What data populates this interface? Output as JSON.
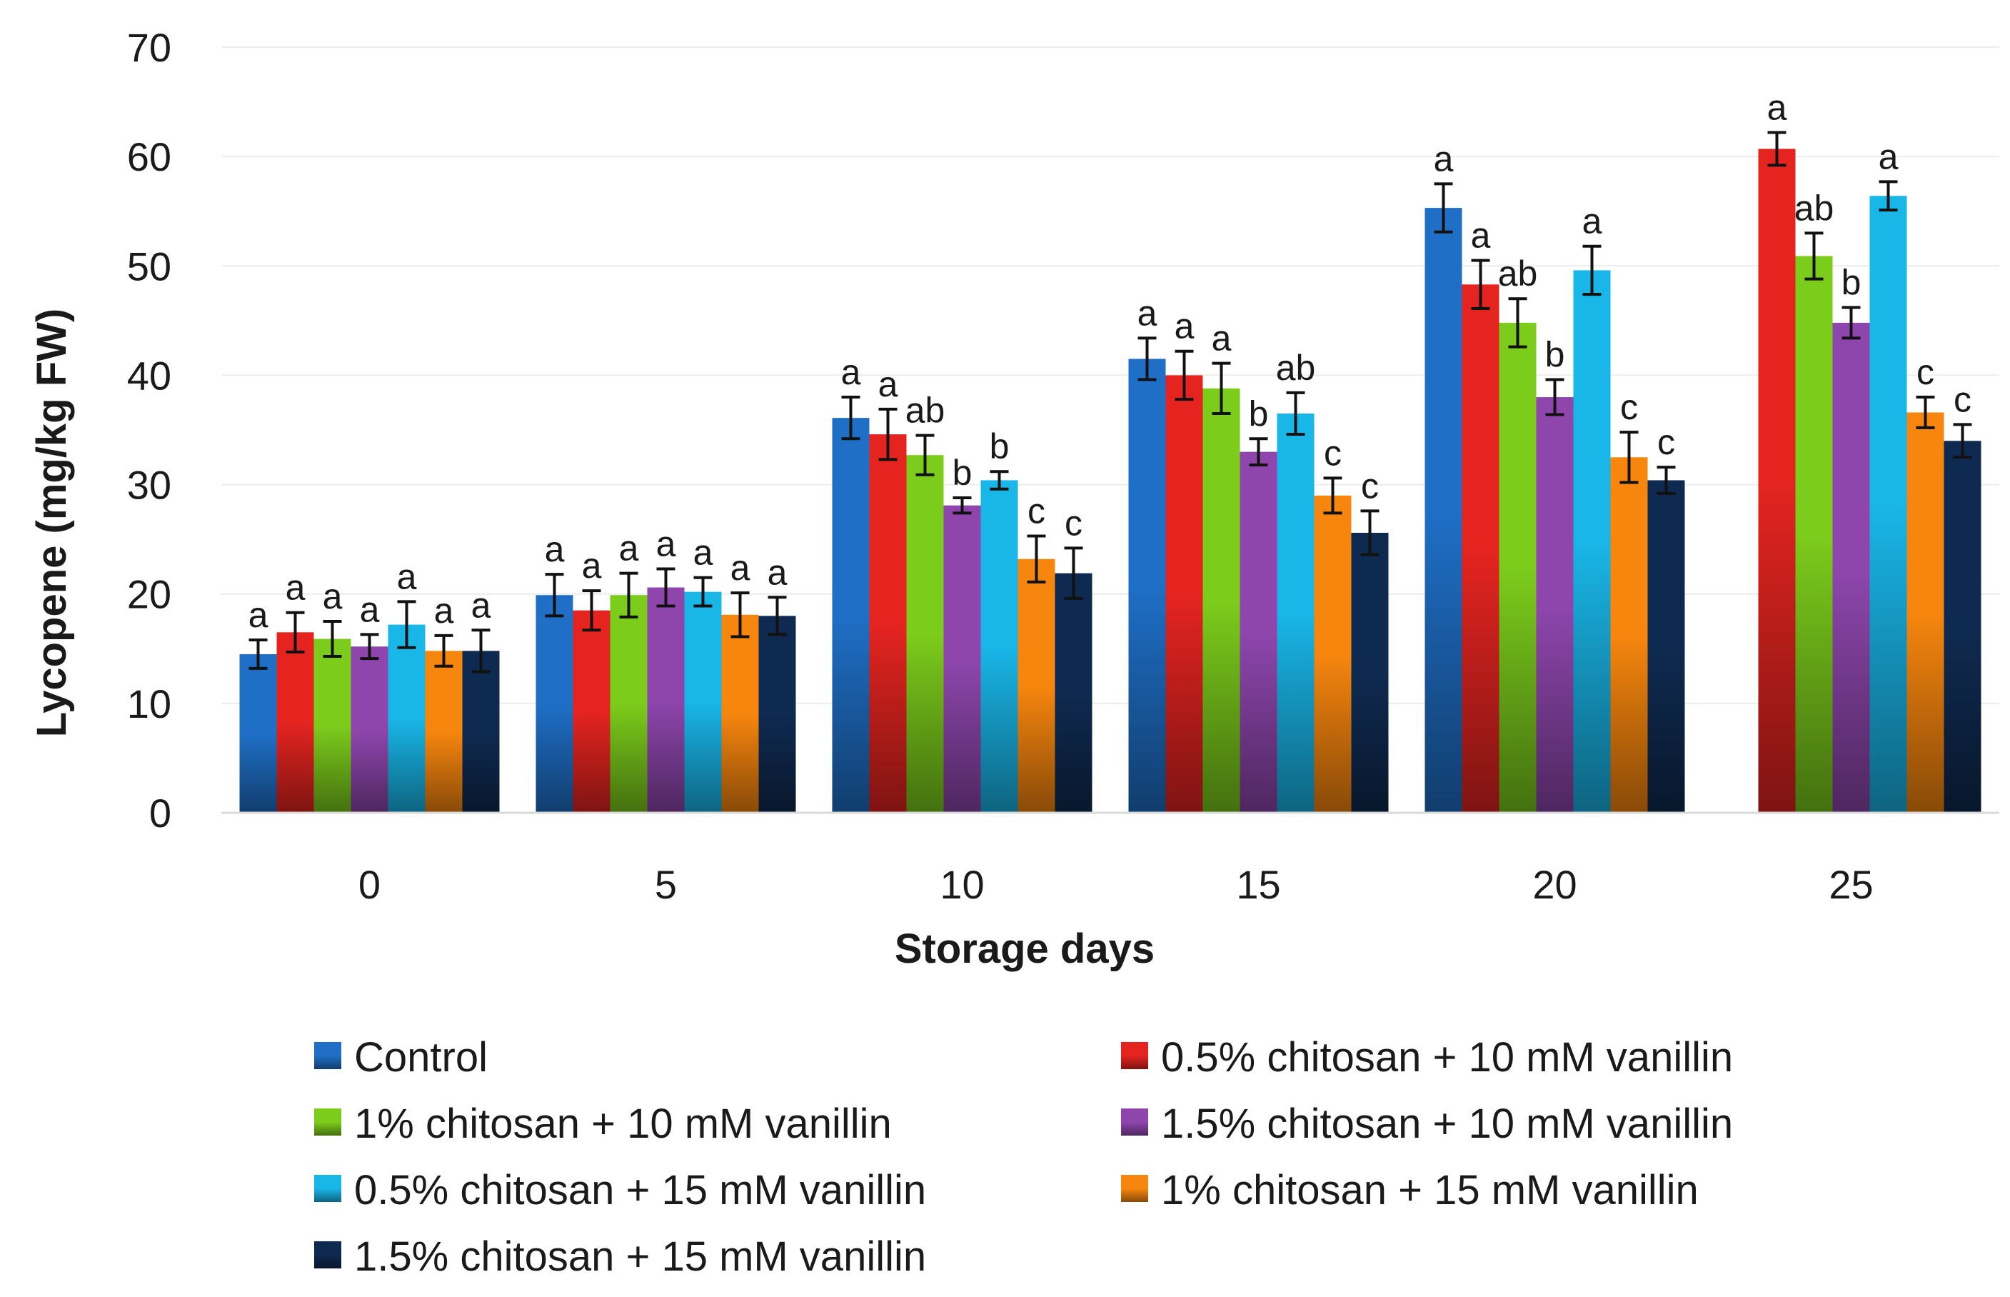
{
  "chart_data": {
    "type": "bar",
    "title": "",
    "xlabel": "Storage days",
    "ylabel": "Lycopene (mg/kg FW)",
    "ylim": [
      0,
      70
    ],
    "yticks": [
      "0",
      "10",
      "20",
      "30",
      "40",
      "50",
      "60",
      "70"
    ],
    "grid": true,
    "legend_position": "bottom",
    "categories": [
      "0",
      "5",
      "10",
      "15",
      "20",
      "25"
    ],
    "series": [
      {
        "name": "Control",
        "color": "#1f6fc7",
        "values": [
          14.5,
          19.9,
          36.1,
          41.5,
          55.3,
          null
        ],
        "errors": [
          1.3,
          1.9,
          1.9,
          1.9,
          2.2,
          null
        ],
        "labels": [
          "a",
          "a",
          "a",
          "a",
          "a",
          ""
        ]
      },
      {
        "name": "0.5% chitosan + 10 mM vanillin",
        "color": "#e52420",
        "values": [
          16.5,
          18.5,
          34.6,
          40.0,
          48.3,
          60.7
        ],
        "errors": [
          1.8,
          1.8,
          2.3,
          2.2,
          2.2,
          1.5
        ],
        "labels": [
          "a",
          "a",
          "a",
          "a",
          "a",
          "a"
        ]
      },
      {
        "name": "1% chitosan + 10 mM vanillin",
        "color": "#7ccc1c",
        "values": [
          15.9,
          19.9,
          32.7,
          38.8,
          44.8,
          50.9
        ],
        "errors": [
          1.6,
          2.0,
          1.8,
          2.3,
          2.2,
          2.1
        ],
        "labels": [
          "a",
          "a",
          "ab",
          "a",
          "ab",
          "ab"
        ]
      },
      {
        "name": "1.5% chitosan + 10 mM vanillin",
        "color": "#8e46ad",
        "values": [
          15.2,
          20.6,
          28.1,
          33.0,
          38.0,
          44.8
        ],
        "errors": [
          1.1,
          1.7,
          0.7,
          1.2,
          1.6,
          1.4
        ],
        "labels": [
          "a",
          "a",
          "b",
          "b",
          "b",
          "b"
        ]
      },
      {
        "name": "0.5% chitosan + 15 mM vanillin",
        "color": "#19b6e8",
        "values": [
          17.2,
          20.2,
          30.4,
          36.5,
          49.6,
          56.4
        ],
        "errors": [
          2.1,
          1.3,
          0.8,
          1.9,
          2.2,
          1.3
        ],
        "labels": [
          "a",
          "a",
          "b",
          "ab",
          "a",
          "a"
        ]
      },
      {
        "name": "1% chitosan + 15 mM vanillin",
        "color": "#f7860e",
        "values": [
          14.8,
          18.1,
          23.2,
          29.0,
          32.5,
          36.6
        ],
        "errors": [
          1.4,
          2.0,
          2.1,
          1.6,
          2.3,
          1.4
        ],
        "labels": [
          "a",
          "a",
          "c",
          "c",
          "c",
          "c"
        ]
      },
      {
        "name": "1.5% chitosan + 15 mM vanillin",
        "color": "#0f2a50",
        "values": [
          14.8,
          18.0,
          21.9,
          25.6,
          30.4,
          34.0
        ],
        "errors": [
          1.9,
          1.7,
          2.3,
          2.0,
          1.2,
          1.5
        ],
        "labels": [
          "a",
          "a",
          "c",
          "c",
          "c",
          "c"
        ]
      }
    ]
  }
}
